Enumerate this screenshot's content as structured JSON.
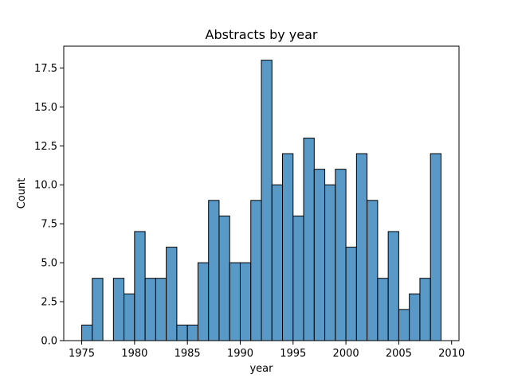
{
  "chart_data": {
    "type": "bar",
    "title": "Abstracts by year",
    "xlabel": "year",
    "ylabel": "Count",
    "bin_edges": [
      1975,
      1976,
      1977,
      1978,
      1979,
      1980,
      1981,
      1982,
      1983,
      1984,
      1985,
      1986,
      1987,
      1988,
      1989,
      1990,
      1991,
      1992,
      1993,
      1994,
      1995,
      1996,
      1997,
      1998,
      1999,
      2000,
      2001,
      2002,
      2003,
      2004,
      2005,
      2006,
      2007,
      2008,
      2009
    ],
    "values": [
      1,
      4,
      0,
      4,
      3,
      7,
      4,
      4,
      6,
      1,
      1,
      5,
      9,
      8,
      5,
      5,
      9,
      18,
      10,
      12,
      8,
      13,
      11,
      10,
      11,
      6,
      12,
      9,
      4,
      7,
      2,
      3,
      4,
      12
    ],
    "xlim": [
      1973.3,
      2010.7
    ],
    "ylim": [
      0,
      18.9
    ],
    "xticks": [
      1975,
      1980,
      1985,
      1990,
      1995,
      2000,
      2005,
      2010
    ],
    "xtick_labels": [
      "1975",
      "1980",
      "1985",
      "1990",
      "1995",
      "2000",
      "2005",
      "2010"
    ],
    "yticks": [
      0,
      2.5,
      5,
      7.5,
      10,
      12.5,
      15,
      17.5
    ],
    "ytick_labels": [
      "0.0",
      "2.5",
      "5.0",
      "7.5",
      "10.0",
      "12.5",
      "15.0",
      "17.5"
    ],
    "bar_color": "#4a90c2",
    "grid": false,
    "legend": "none"
  }
}
